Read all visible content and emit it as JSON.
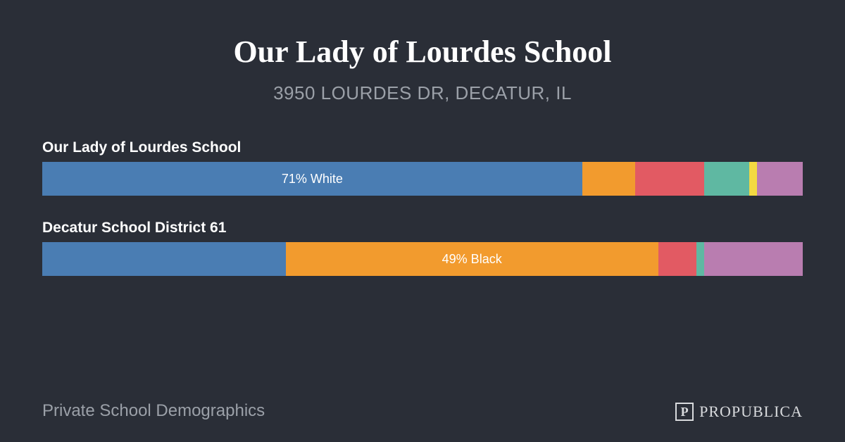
{
  "background_color": "#2a2e37",
  "title": {
    "text": "Our Lady of Lourdes School",
    "color": "#ffffff",
    "fontsize": 44
  },
  "subtitle": {
    "text": "3950 LOURDES DR, DECATUR, IL",
    "color": "#9ba0a8",
    "fontsize": 26
  },
  "charts": [
    {
      "label": "Our Lady of Lourdes School",
      "label_color": "#ffffff",
      "label_fontsize": 21,
      "segments": [
        {
          "value": 71,
          "color": "#4a7db3",
          "text": "71% White",
          "text_color": "#ffffff"
        },
        {
          "value": 7,
          "color": "#f29b2e",
          "text": "",
          "text_color": "#ffffff"
        },
        {
          "value": 9,
          "color": "#e25a63",
          "text": "",
          "text_color": "#ffffff"
        },
        {
          "value": 6,
          "color": "#5fb8a2",
          "text": "",
          "text_color": "#ffffff"
        },
        {
          "value": 1,
          "color": "#f3d942",
          "text": "",
          "text_color": "#ffffff"
        },
        {
          "value": 6,
          "color": "#b97db0",
          "text": "",
          "text_color": "#ffffff"
        }
      ]
    },
    {
      "label": "Decatur School District 61",
      "label_color": "#ffffff",
      "label_fontsize": 21,
      "segments": [
        {
          "value": 32,
          "color": "#4a7db3",
          "text": "",
          "text_color": "#ffffff"
        },
        {
          "value": 49,
          "color": "#f29b2e",
          "text": "49% Black",
          "text_color": "#ffffff"
        },
        {
          "value": 5,
          "color": "#e25a63",
          "text": "",
          "text_color": "#ffffff"
        },
        {
          "value": 1,
          "color": "#5fb8a2",
          "text": "",
          "text_color": "#ffffff"
        },
        {
          "value": 13,
          "color": "#b97db0",
          "text": "",
          "text_color": "#ffffff"
        }
      ]
    }
  ],
  "footer": {
    "left_text": "Private School Demographics",
    "left_color": "#9ba0a8",
    "logo_text": "PROPUBLICA",
    "logo_color": "#d8dadd",
    "logo_fontsize": 22,
    "icon_letter": "P",
    "icon_border_color": "#d8dadd"
  }
}
